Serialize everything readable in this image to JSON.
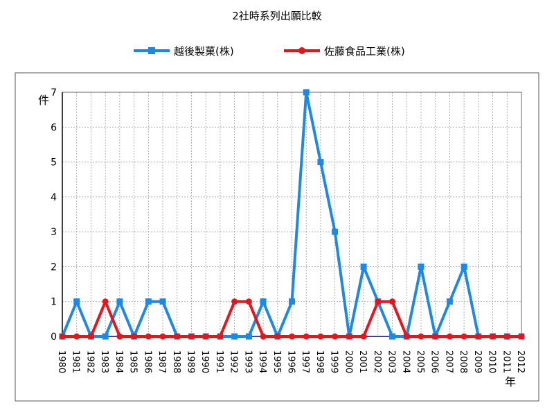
{
  "chart_data": {
    "type": "line",
    "title": "2社時系列出願比較",
    "ylabel": "件",
    "xlabel": "年",
    "ylim": [
      0,
      7
    ],
    "yticks": [
      0,
      1,
      2,
      3,
      4,
      5,
      6,
      7
    ],
    "grid": true,
    "legend_placement": "top-center",
    "categories": [
      "1980",
      "1981",
      "1982",
      "1983",
      "1984",
      "1985",
      "1986",
      "1987",
      "1988",
      "1989",
      "1990",
      "1991",
      "1992",
      "1993",
      "1994",
      "1995",
      "1996",
      "1997",
      "1998",
      "1999",
      "2000",
      "2001",
      "2002",
      "2003",
      "2004",
      "2005",
      "2006",
      "2007",
      "2008",
      "2009",
      "2010",
      "2011",
      "2012"
    ],
    "series": [
      {
        "name": "越後製菓(株)",
        "color": "#1e88e5",
        "marker": "square",
        "values": [
          0,
          1,
          0,
          0,
          1,
          0,
          1,
          1,
          0,
          0,
          0,
          0,
          0,
          0,
          1,
          0,
          1,
          7,
          5,
          3,
          0,
          2,
          1,
          0,
          0,
          2,
          0,
          1,
          2,
          0,
          0,
          0,
          0
        ]
      },
      {
        "name": "佐藤食品工業(株)",
        "color": "#e8141c",
        "marker": "circle",
        "values": [
          0,
          0,
          0,
          1,
          0,
          0,
          0,
          0,
          0,
          0,
          0,
          0,
          1,
          1,
          0,
          0,
          0,
          0,
          0,
          0,
          0,
          0,
          1,
          1,
          0,
          0,
          0,
          0,
          0,
          0,
          0,
          0,
          0
        ]
      }
    ]
  }
}
